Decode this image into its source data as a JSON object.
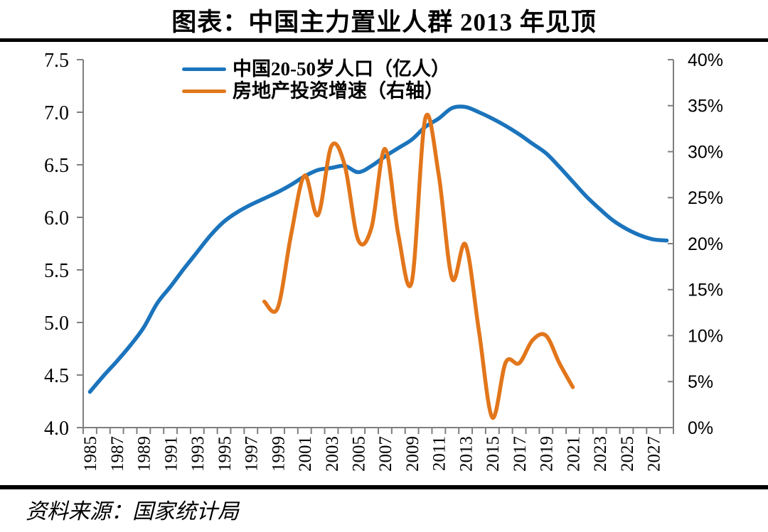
{
  "header": {
    "title": "图表：中国主力置业人群 2013 年见顶"
  },
  "footer": {
    "source": "资料来源：国家统计局"
  },
  "colors": {
    "population_line": "#1B74BC",
    "investment_line": "#E2761B",
    "axis": "#7F7F7F",
    "rule": "#000000",
    "text": "#000000"
  },
  "chart_data": {
    "type": "line",
    "title": "图表：中国主力置业人群 2013 年见顶",
    "grid": false,
    "legend_position": "top-center",
    "categories": [
      1985,
      1986,
      1987,
      1988,
      1989,
      1990,
      1991,
      1992,
      1993,
      1994,
      1995,
      1996,
      1997,
      1998,
      1999,
      2000,
      2001,
      2002,
      2003,
      2004,
      2005,
      2006,
      2007,
      2008,
      2009,
      2010,
      2011,
      2012,
      2013,
      2014,
      2015,
      2016,
      2017,
      2018,
      2019,
      2020,
      2021,
      2022,
      2023,
      2024,
      2025,
      2026,
      2027,
      2028
    ],
    "x_tick_labels": [
      "1985",
      "1987",
      "1989",
      "1991",
      "1993",
      "1995",
      "1997",
      "1999",
      "2001",
      "2003",
      "2005",
      "2007",
      "2009",
      "2011",
      "2013",
      "2015",
      "2017",
      "2019",
      "2021",
      "2023",
      "2025",
      "2027"
    ],
    "left_axis": {
      "min": 4.0,
      "max": 7.5,
      "step": 0.5,
      "labels": [
        "7.5",
        "7.0",
        "6.5",
        "6.0",
        "5.5",
        "5.0",
        "4.5",
        "4.0"
      ]
    },
    "right_axis": {
      "min": 0,
      "max": 40,
      "step": 5,
      "labels": [
        "40%",
        "35%",
        "30%",
        "25%",
        "20%",
        "15%",
        "10%",
        "5%",
        "0%"
      ]
    },
    "series": [
      {
        "name": "中国20-50岁人口（亿人）",
        "axis": "left",
        "color": "#1B74BC",
        "values": [
          4.34,
          4.49,
          4.63,
          4.78,
          4.95,
          5.18,
          5.34,
          5.51,
          5.67,
          5.83,
          5.96,
          6.05,
          6.12,
          6.18,
          6.24,
          6.31,
          6.39,
          6.45,
          6.47,
          6.49,
          6.43,
          6.49,
          6.58,
          6.66,
          6.74,
          6.86,
          6.94,
          7.04,
          7.05,
          7.0,
          6.94,
          6.87,
          6.79,
          6.7,
          6.61,
          6.48,
          6.34,
          6.2,
          6.08,
          5.97,
          5.89,
          5.83,
          5.79,
          5.78
        ]
      },
      {
        "name": "房地产投资增速（右轴）",
        "axis": "right",
        "color": "#E2761B",
        "values": [
          null,
          null,
          null,
          null,
          null,
          null,
          null,
          null,
          null,
          null,
          null,
          null,
          null,
          13.7,
          13.0,
          21.0,
          27.4,
          23.1,
          30.6,
          28.5,
          20.4,
          21.8,
          30.3,
          20.9,
          15.9,
          33.6,
          27.5,
          16.2,
          19.9,
          10.5,
          1.1,
          7.1,
          7.0,
          9.5,
          10.0,
          7.0,
          4.4,
          null,
          null,
          null,
          null,
          null,
          null,
          null
        ]
      }
    ]
  }
}
